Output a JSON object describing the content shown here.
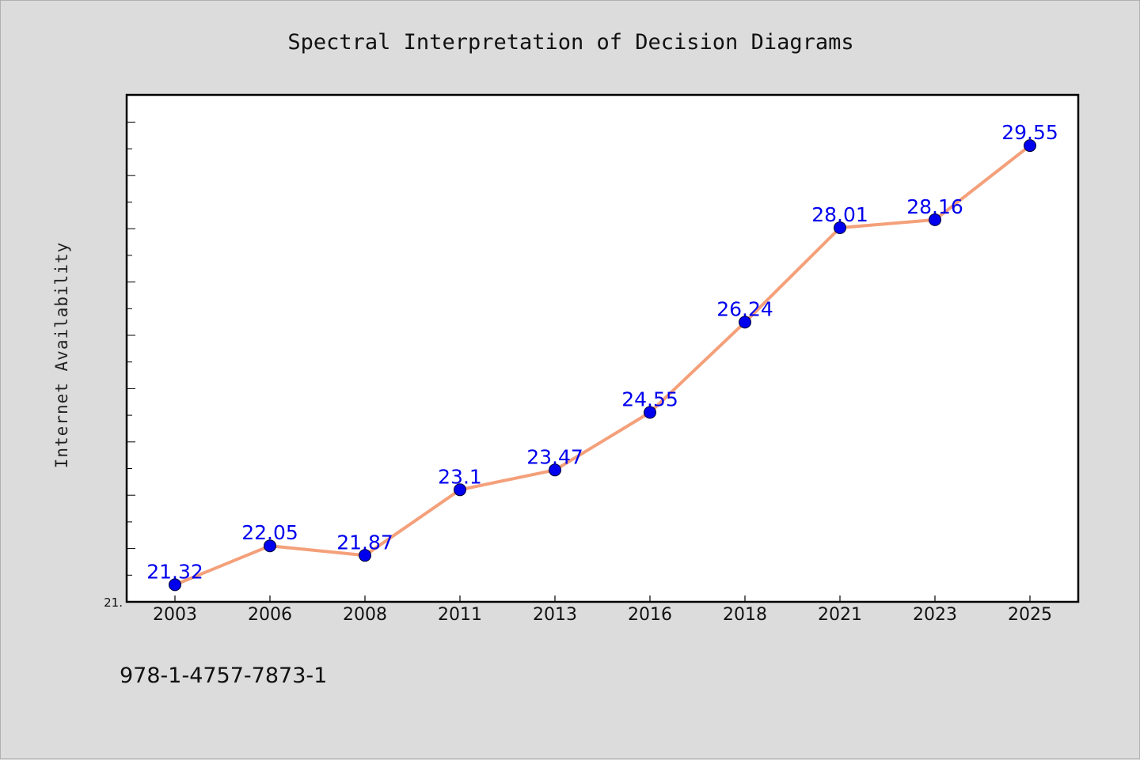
{
  "chart_data": {
    "type": "line",
    "title": "Spectral Interpretation of Decision Diagrams",
    "ylabel": "Internet Availability",
    "xlabel": "",
    "categories": [
      "2003",
      "2006",
      "2008",
      "2011",
      "2013",
      "2016",
      "2018",
      "2021",
      "2023",
      "2025"
    ],
    "series": [
      {
        "values": [
          21.32,
          22.05,
          21.87,
          23.1,
          23.47,
          24.55,
          26.24,
          28.01,
          28.16,
          29.55
        ]
      }
    ],
    "data_labels": [
      "21.32",
      "22.05",
      "21.87",
      "23.1",
      "23.47",
      "24.55",
      "26.24",
      "28.01",
      "28.16",
      "29.55"
    ],
    "ylim": [
      21.0,
      30.5
    ],
    "ytick_label": "21.",
    "grid": false,
    "line_color": "#f4a07a",
    "marker_color": "#0000ee",
    "label_color": "#0000ee"
  },
  "footer": {
    "isbn": "978-1-4757-7873-1"
  }
}
